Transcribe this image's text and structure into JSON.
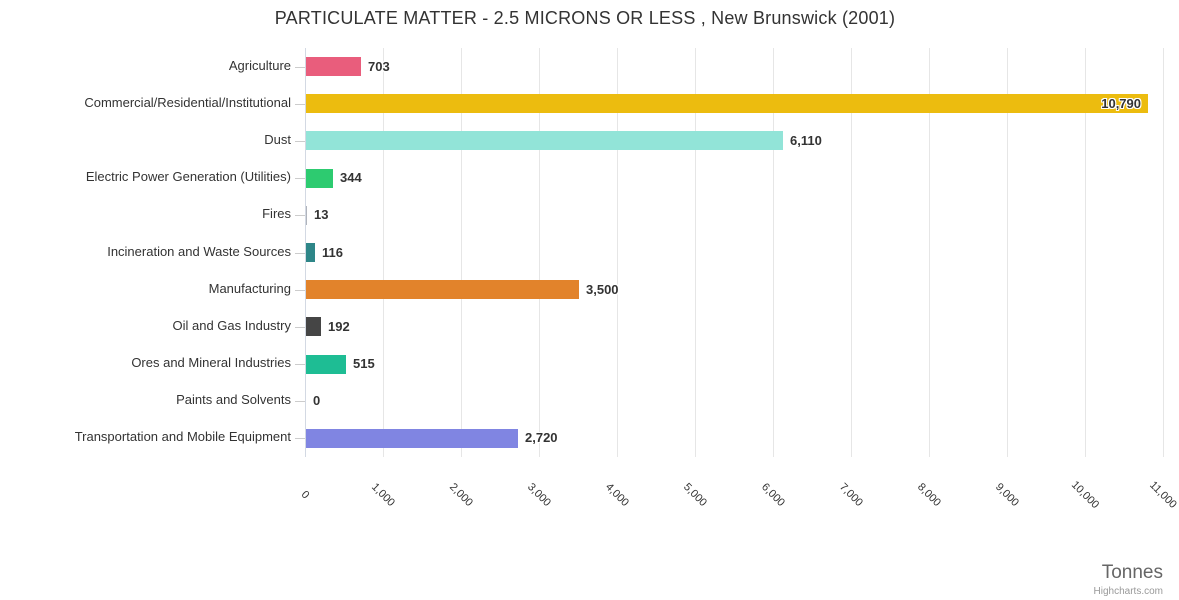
{
  "credit": "Highcharts.com",
  "chart_data": {
    "type": "bar",
    "orientation": "horizontal",
    "title": "PARTICULATE MATTER - 2.5 MICRONS OR LESS , New Brunswick (2001)",
    "xlabel": "Tonnes",
    "categories": [
      "Agriculture",
      "Commercial/Residential/Institutional",
      "Dust",
      "Electric Power Generation (Utilities)",
      "Fires",
      "Incineration and Waste Sources",
      "Manufacturing",
      "Oil and Gas Industry",
      "Ores and Mineral Industries",
      "Paints and Solvents",
      "Transportation and Mobile Equipment"
    ],
    "values": [
      703,
      10790,
      6110,
      344,
      13,
      116,
      3500,
      192,
      515,
      0,
      2720
    ],
    "value_labels": [
      "703",
      "10,790",
      "6,110",
      "344",
      "13",
      "116",
      "3,500",
      "192",
      "515",
      "0",
      "2,720"
    ],
    "bar_colors": [
      "#e95d7c",
      "#ecbc0f",
      "#92e4d8",
      "#2dcb70",
      "#b0b4bc",
      "#2e8688",
      "#e2832b",
      "#454545",
      "#1ebd94",
      "#cccccc",
      "#8085e2"
    ],
    "xlim": [
      0,
      11000
    ],
    "tick_interval": 1000,
    "x_tick_labels": [
      "0",
      "1,000",
      "2,000",
      "3,000",
      "4,000",
      "5,000",
      "6,000",
      "7,000",
      "8,000",
      "9,000",
      "10,000",
      "11,000"
    ],
    "grid": true,
    "legend": "none",
    "colors": {
      "grid": "#e6e6e6",
      "axis_line": "#d3d9e3",
      "text": "#333333",
      "unit_text": "#666666",
      "credit_text": "#999999"
    }
  }
}
